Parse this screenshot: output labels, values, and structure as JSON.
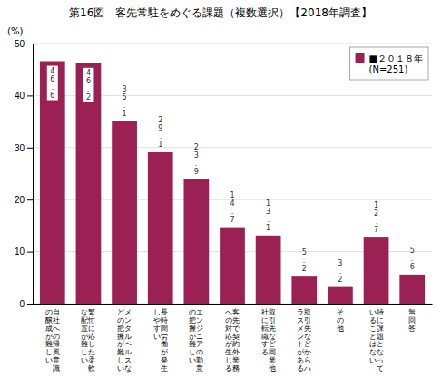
{
  "chart_data": {
    "type": "bar",
    "title": "第16図　客先常駐をめぐる課題（複数選択）【2018年調査】",
    "categories": [
      "の自\n醸社\n成へ\nがの\n難帰\nし風\nい意\n　識",
      "な繁\n配忙\n置に\nが応\n難じ\nした\nい柔\n　軟",
      "どメ\nのン\n把タ\n握ル\nがヘ\n難ル\nしス\nいな",
      "し長\nや時\nす間\nい労\n　働\n　が\n　発\n　生",
      "のエ\n把ン\n握ジ\nがニ\n難ア\nしの\nい勤\n　意",
      "へ客\nの先\n対で\n応契\nが約\n生外\nじ業\nる務",
      "社取\nに引\n転先\n職な\nすど\nる同\n　業\n　他",
      "ラ取\nス引\nメ先\nンな\nトど\nがか\nあら\nるハ",
      "そ\nの\n他",
      "い特\nるに\nこ課\nと題\nはと\nなな\nいっ\n　て",
      "無\n回\n答"
    ],
    "series": [
      {
        "name": "■２０１８年\n(N=251)",
        "color": "#9B2155",
        "values": [
          46.6,
          46.2,
          35.1,
          29.1,
          23.9,
          14.7,
          13.1,
          5.2,
          3.2,
          12.7,
          5.6
        ],
        "value_labels": [
          "4\n6\n．\n6",
          "4\n6\n．\n2",
          "3\n5\n．\n1",
          "2\n9\n．\n1",
          "2\n3\n．\n9",
          "1\n4\n．\n7",
          "1\n3\n．\n1",
          "5\n．\n2",
          "3\n．\n2",
          "1\n2\n．\n7",
          "5\n．\n6"
        ]
      }
    ],
    "ylabel": "(%)",
    "ylim": [
      0,
      50
    ],
    "yticks": [
      0,
      10,
      20,
      30,
      40,
      50
    ],
    "grid": true,
    "legend": "upper right",
    "data_labels": true
  }
}
